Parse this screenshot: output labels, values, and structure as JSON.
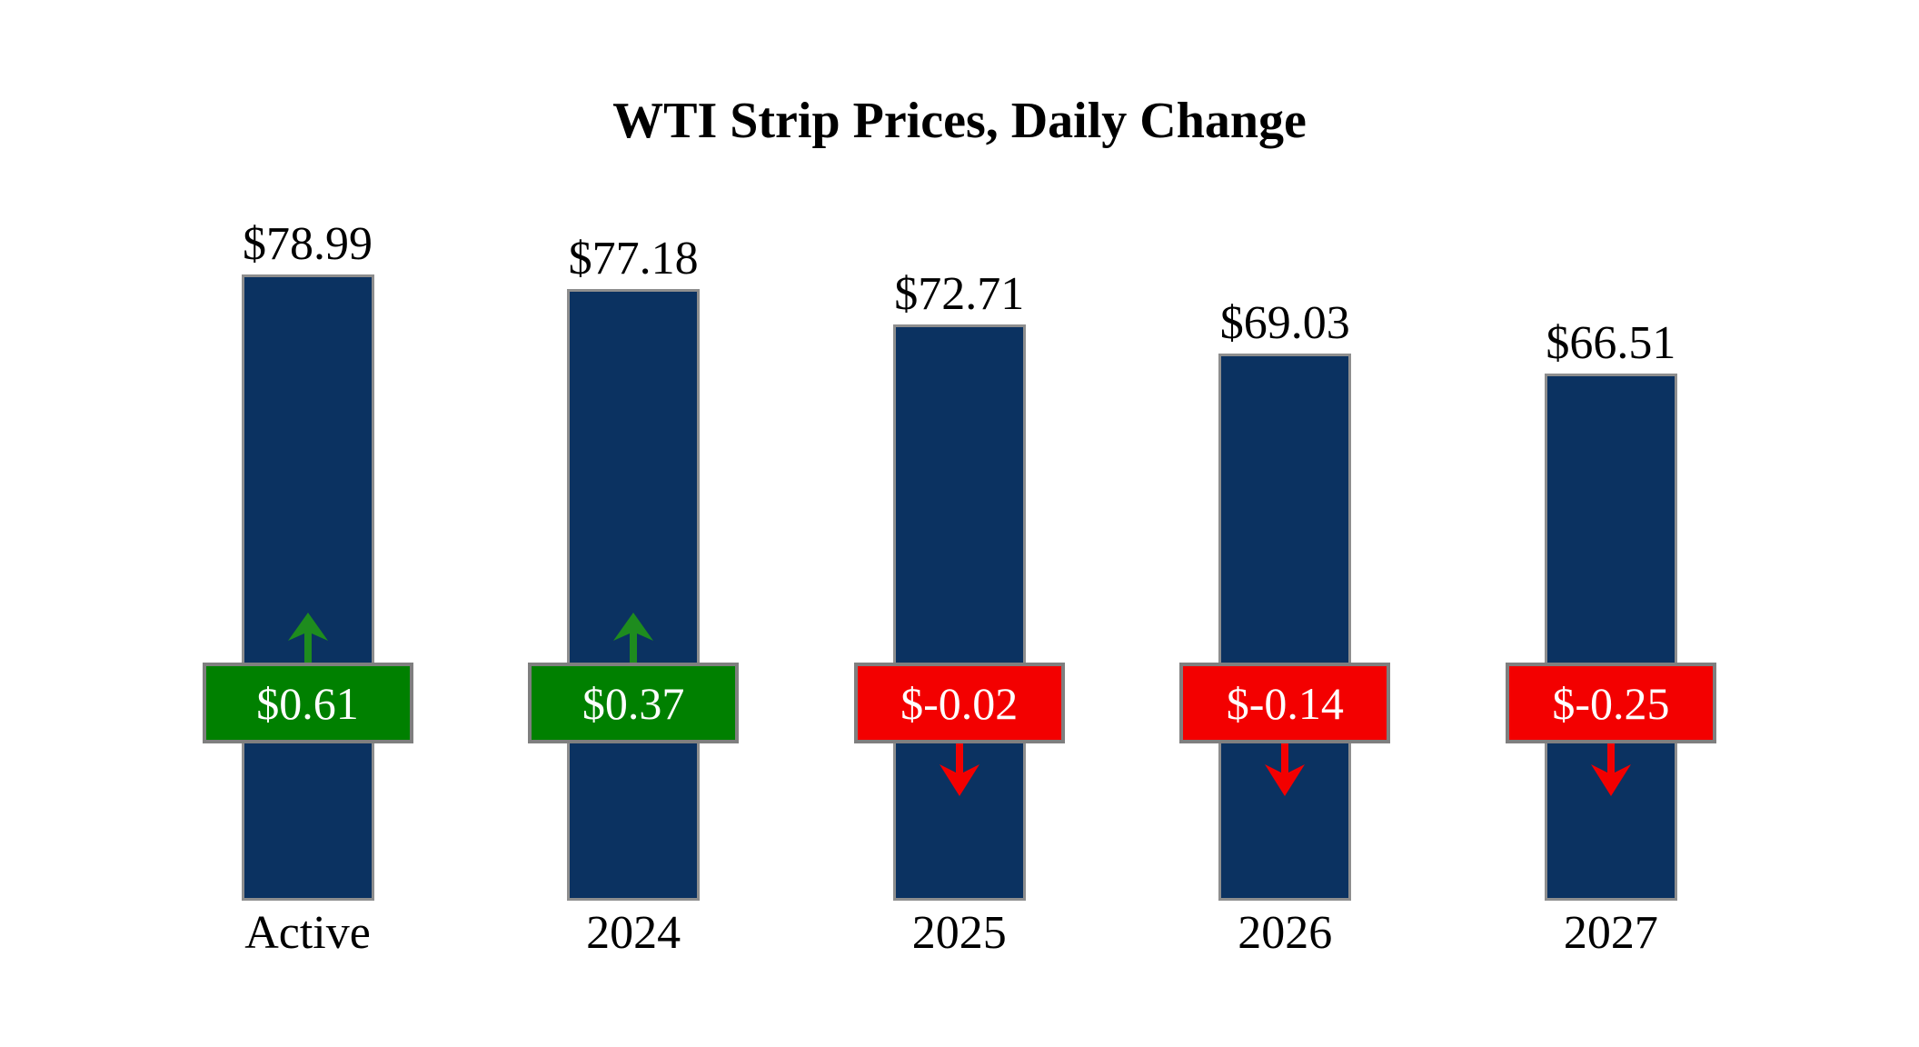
{
  "title": "WTI Strip Prices, Daily Change",
  "chart_data": {
    "type": "bar",
    "title": "WTI Strip Prices, Daily Change",
    "categories": [
      "Active",
      "2024",
      "2025",
      "2026",
      "2027"
    ],
    "series": [
      {
        "name": "WTI Strip Price",
        "values": [
          78.99,
          77.18,
          72.71,
          69.03,
          66.51
        ]
      },
      {
        "name": "Daily Change",
        "values": [
          0.61,
          0.37,
          -0.02,
          -0.14,
          -0.25
        ]
      }
    ],
    "ylim": [
      0,
      79
    ],
    "grid": false,
    "legend": false,
    "axes_visible": false
  },
  "bars": [
    {
      "category": "Active",
      "price": 78.99,
      "price_label": "$78.99",
      "change": 0.61,
      "change_label": "$0.61",
      "direction": "up"
    },
    {
      "category": "2024",
      "price": 77.18,
      "price_label": "$77.18",
      "change": 0.37,
      "change_label": "$0.37",
      "direction": "up"
    },
    {
      "category": "2025",
      "price": 72.71,
      "price_label": "$72.71",
      "change": -0.02,
      "change_label": "$-0.02",
      "direction": "down"
    },
    {
      "category": "2026",
      "price": 69.03,
      "price_label": "$69.03",
      "change": -0.14,
      "change_label": "$-0.14",
      "direction": "down"
    },
    {
      "category": "2027",
      "price": 66.51,
      "price_label": "$66.51",
      "change": -0.25,
      "change_label": "$-0.25",
      "direction": "down"
    }
  ],
  "colors": {
    "bar_fill": "#0b3261",
    "bar_border": "#8e8e8e",
    "badge_border": "#7f7f7f",
    "positive_badge": "#008000",
    "negative_badge": "#f30000",
    "up_arrow": "#1e8c1e",
    "down_arrow": "#f30000",
    "badge_text": "#ffffff",
    "label_text": "#000000",
    "background": "#ffffff"
  }
}
